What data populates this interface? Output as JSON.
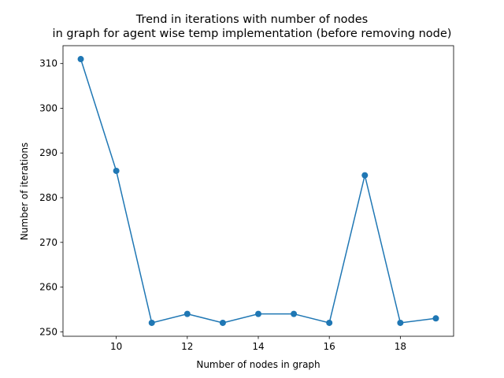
{
  "chart_data": {
    "type": "line",
    "title_line1": "Trend in iterations with number of nodes",
    "title_line2": "in graph for agent wise temp implementation (before removing node)",
    "xlabel": "Number of nodes in graph",
    "ylabel": "Number of iterations",
    "x": [
      9,
      10,
      11,
      12,
      13,
      14,
      15,
      16,
      17,
      18,
      19
    ],
    "y": [
      311,
      286,
      252,
      254,
      252,
      254,
      254,
      252,
      285,
      252,
      253
    ],
    "xlim": [
      8.5,
      19.5
    ],
    "ylim": [
      249,
      314
    ],
    "xticks": [
      10,
      12,
      14,
      16,
      18
    ],
    "yticks": [
      250,
      260,
      270,
      280,
      290,
      300,
      310
    ],
    "grid": false,
    "line_color": "#1f77b4",
    "marker": "circle"
  }
}
